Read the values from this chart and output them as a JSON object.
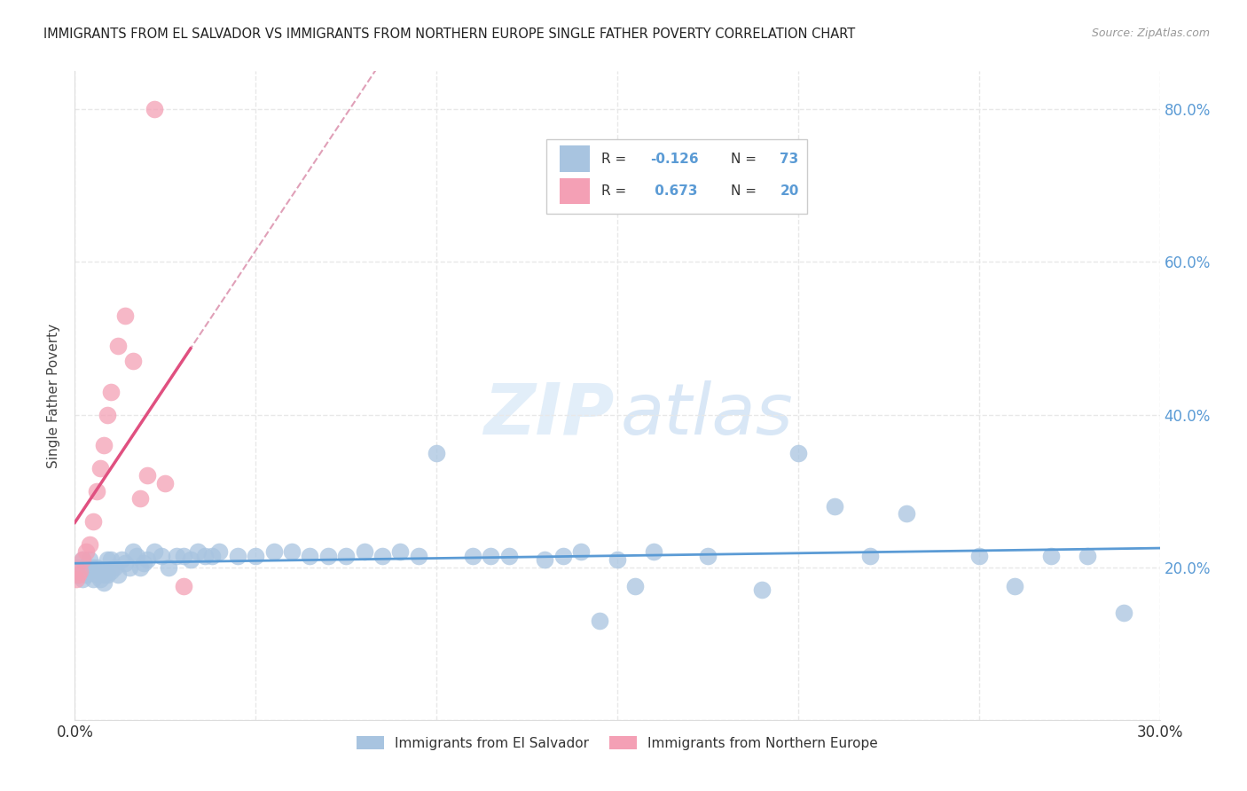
{
  "title": "IMMIGRANTS FROM EL SALVADOR VS IMMIGRANTS FROM NORTHERN EUROPE SINGLE FATHER POVERTY CORRELATION CHART",
  "source": "Source: ZipAtlas.com",
  "ylabel": "Single Father Poverty",
  "x_min": 0.0,
  "x_max": 0.3,
  "y_min": 0.0,
  "y_max": 0.85,
  "x_tick_positions": [
    0.0,
    0.05,
    0.1,
    0.15,
    0.2,
    0.25,
    0.3
  ],
  "x_tick_labels": [
    "0.0%",
    "",
    "",
    "",
    "",
    "",
    "30.0%"
  ],
  "y_tick_positions": [
    0.0,
    0.2,
    0.4,
    0.6,
    0.8
  ],
  "y_tick_labels_right": [
    "",
    "20.0%",
    "40.0%",
    "60.0%",
    "80.0%"
  ],
  "color_el_salvador": "#a8c4e0",
  "color_northern_europe": "#f4a0b5",
  "color_el_salvador_line": "#5b9bd5",
  "color_northern_europe_line": "#e05080",
  "color_dashed_line": "#e0a0b8",
  "background_color": "#ffffff",
  "watermark_zip_color": "#c8dff5",
  "watermark_atlas_color": "#b8d4f0",
  "grid_color": "#e8e8e8",
  "title_color": "#222222",
  "source_color": "#999999",
  "ylabel_color": "#444444",
  "xtick_color": "#333333",
  "ytick_right_color": "#5b9bd5",
  "legend_r1_val": "-0.126",
  "legend_n1_val": "73",
  "legend_r2_val": "0.673",
  "legend_n2_val": "20",
  "legend_color_val": "#5b9bd5",
  "legend_label_color": "#333333",
  "el_salvador_x": [
    0.001,
    0.001,
    0.002,
    0.002,
    0.003,
    0.003,
    0.004,
    0.004,
    0.005,
    0.005,
    0.006,
    0.006,
    0.007,
    0.007,
    0.008,
    0.008,
    0.009,
    0.009,
    0.01,
    0.01,
    0.011,
    0.012,
    0.013,
    0.014,
    0.015,
    0.016,
    0.017,
    0.018,
    0.019,
    0.02,
    0.022,
    0.024,
    0.026,
    0.028,
    0.03,
    0.032,
    0.034,
    0.036,
    0.038,
    0.04,
    0.045,
    0.05,
    0.055,
    0.06,
    0.065,
    0.07,
    0.075,
    0.08,
    0.085,
    0.09,
    0.095,
    0.1,
    0.11,
    0.115,
    0.12,
    0.13,
    0.135,
    0.14,
    0.145,
    0.15,
    0.155,
    0.16,
    0.175,
    0.19,
    0.2,
    0.21,
    0.22,
    0.23,
    0.25,
    0.26,
    0.27,
    0.28,
    0.29
  ],
  "el_salvador_y": [
    0.19,
    0.2,
    0.21,
    0.185,
    0.19,
    0.2,
    0.195,
    0.21,
    0.185,
    0.2,
    0.19,
    0.2,
    0.185,
    0.195,
    0.19,
    0.18,
    0.21,
    0.19,
    0.21,
    0.195,
    0.2,
    0.19,
    0.21,
    0.205,
    0.2,
    0.22,
    0.215,
    0.2,
    0.205,
    0.21,
    0.22,
    0.215,
    0.2,
    0.215,
    0.215,
    0.21,
    0.22,
    0.215,
    0.215,
    0.22,
    0.215,
    0.215,
    0.22,
    0.22,
    0.215,
    0.215,
    0.215,
    0.22,
    0.215,
    0.22,
    0.215,
    0.35,
    0.215,
    0.215,
    0.215,
    0.21,
    0.215,
    0.22,
    0.13,
    0.21,
    0.175,
    0.22,
    0.215,
    0.17,
    0.35,
    0.28,
    0.215,
    0.27,
    0.215,
    0.175,
    0.215,
    0.215,
    0.14
  ],
  "northern_europe_x": [
    0.0005,
    0.001,
    0.0015,
    0.002,
    0.003,
    0.004,
    0.005,
    0.006,
    0.007,
    0.008,
    0.009,
    0.01,
    0.012,
    0.014,
    0.016,
    0.018,
    0.02,
    0.025,
    0.03,
    0.022
  ],
  "northern_europe_y": [
    0.185,
    0.19,
    0.195,
    0.21,
    0.22,
    0.23,
    0.26,
    0.3,
    0.33,
    0.36,
    0.4,
    0.43,
    0.49,
    0.53,
    0.47,
    0.29,
    0.32,
    0.31,
    0.175,
    0.8
  ]
}
